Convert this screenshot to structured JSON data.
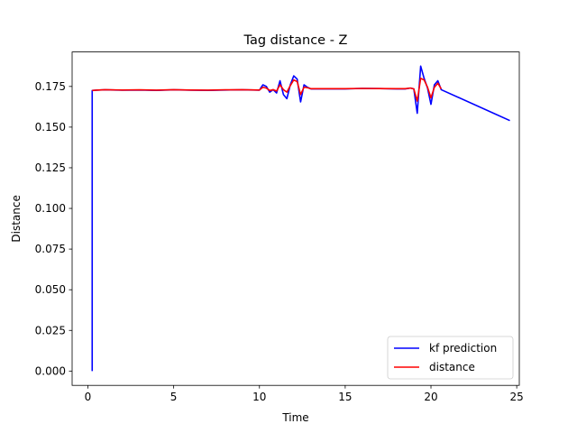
{
  "chart_data": {
    "type": "line",
    "title": "Tag distance - Z",
    "xlabel": "Time",
    "ylabel": "Distance",
    "xlim": [
      -0.92,
      25.15
    ],
    "ylim": [
      -0.0088,
      0.1962
    ],
    "xticks": [
      0,
      5,
      10,
      15,
      20,
      25
    ],
    "yticks": [
      0.0,
      0.025,
      0.05,
      0.075,
      0.1,
      0.125,
      0.15,
      0.175
    ],
    "ytick_labels": [
      "0.000",
      "0.025",
      "0.050",
      "0.075",
      "0.100",
      "0.125",
      "0.150",
      "0.175"
    ],
    "grid": false,
    "legend_position": "lower-right",
    "series": [
      {
        "name": "kf prediction",
        "color": "#0000ff",
        "x": [
          0.25,
          0.25,
          0.5,
          1,
          2,
          3,
          4,
          5,
          6,
          7,
          8,
          9,
          10,
          10.2,
          10.4,
          10.6,
          10.8,
          11.0,
          11.2,
          11.4,
          11.6,
          11.8,
          12.0,
          12.2,
          12.4,
          12.6,
          12.8,
          13.0,
          14,
          15,
          16,
          17,
          18,
          18.5,
          18.8,
          19.0,
          19.2,
          19.4,
          19.6,
          19.8,
          20.0,
          20.2,
          20.4,
          20.6,
          24.6
        ],
        "y": [
          0.0,
          0.1725,
          0.1727,
          0.1729,
          0.1727,
          0.1728,
          0.1726,
          0.1729,
          0.1727,
          0.1726,
          0.1728,
          0.1729,
          0.1727,
          0.176,
          0.175,
          0.1715,
          0.173,
          0.171,
          0.1785,
          0.17,
          0.1675,
          0.176,
          0.1815,
          0.1795,
          0.1655,
          0.176,
          0.1745,
          0.1735,
          0.1735,
          0.1735,
          0.1738,
          0.1737,
          0.1735,
          0.1735,
          0.174,
          0.1735,
          0.1585,
          0.1875,
          0.18,
          0.174,
          0.164,
          0.176,
          0.1785,
          0.173,
          0.154
        ]
      },
      {
        "name": "distance",
        "color": "#ff0000",
        "x": [
          0.25,
          0.5,
          1,
          2,
          3,
          4,
          5,
          6,
          7,
          8,
          9,
          10,
          10.2,
          10.4,
          10.6,
          10.8,
          11.0,
          11.2,
          11.4,
          11.6,
          11.8,
          12.0,
          12.2,
          12.4,
          12.6,
          12.8,
          13.0,
          14,
          15,
          16,
          17,
          18,
          18.5,
          18.8,
          19.0,
          19.2,
          19.4,
          19.6,
          19.8,
          20.0,
          20.2,
          20.4,
          20.6
        ],
        "y": [
          0.1725,
          0.1727,
          0.173,
          0.1728,
          0.1729,
          0.1727,
          0.173,
          0.1728,
          0.1727,
          0.1729,
          0.173,
          0.1728,
          0.1745,
          0.174,
          0.1725,
          0.173,
          0.1722,
          0.176,
          0.173,
          0.1715,
          0.1755,
          0.179,
          0.178,
          0.17,
          0.1745,
          0.1742,
          0.1736,
          0.1736,
          0.1736,
          0.1738,
          0.1737,
          0.1736,
          0.1736,
          0.174,
          0.1735,
          0.166,
          0.18,
          0.179,
          0.1745,
          0.168,
          0.1745,
          0.177,
          0.1735
        ]
      }
    ]
  }
}
